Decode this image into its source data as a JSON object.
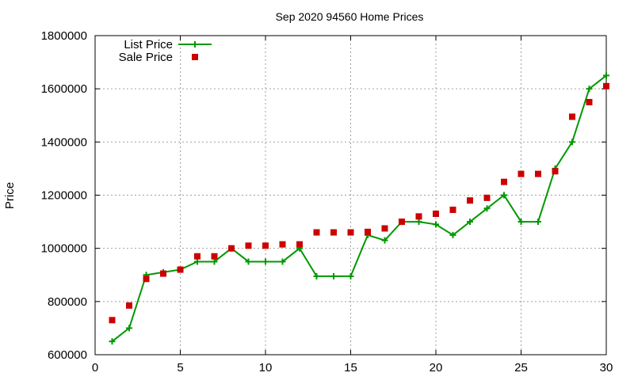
{
  "chart_data": {
    "type": "line",
    "title": "Sep 2020 94560 Home Prices",
    "xlabel": "",
    "ylabel": "Price",
    "xlim": [
      0,
      30
    ],
    "ylim": [
      600000,
      1800000
    ],
    "grid": true,
    "legend_position": "top-left",
    "x_ticks": [
      "0",
      "5",
      "10",
      "15",
      "20",
      "25",
      "30"
    ],
    "y_ticks": [
      "600000",
      "800000",
      "1000000",
      "1200000",
      "1400000",
      "1600000",
      "1800000"
    ],
    "series": [
      {
        "name": "List Price",
        "style": "line-with-plus-markers",
        "color": "#009900",
        "x": [
          1,
          2,
          3,
          4,
          5,
          6,
          7,
          8,
          9,
          10,
          11,
          12,
          13,
          14,
          15,
          16,
          17,
          18,
          19,
          20,
          21,
          22,
          23,
          24,
          25,
          26,
          27,
          28,
          29,
          30
        ],
        "y": [
          650000,
          700000,
          900000,
          910000,
          920000,
          950000,
          950000,
          1000000,
          950000,
          950000,
          950000,
          1000000,
          895000,
          895000,
          895000,
          1050000,
          1030000,
          1100000,
          1100000,
          1090000,
          1050000,
          1100000,
          1150000,
          1200000,
          1100000,
          1100000,
          1300000,
          1400000,
          1600000,
          1650000
        ]
      },
      {
        "name": "Sale Price",
        "style": "square-markers",
        "color": "#cc0000",
        "x": [
          1,
          2,
          3,
          4,
          5,
          6,
          7,
          8,
          9,
          10,
          11,
          12,
          13,
          14,
          15,
          16,
          17,
          18,
          19,
          20,
          21,
          22,
          23,
          24,
          25,
          26,
          27,
          28,
          29,
          30
        ],
        "y": [
          730000,
          785000,
          885000,
          905000,
          920000,
          970000,
          970000,
          1000000,
          1010000,
          1010000,
          1015000,
          1015000,
          1060000,
          1060000,
          1060000,
          1062000,
          1075000,
          1100000,
          1120000,
          1130000,
          1145000,
          1180000,
          1190000,
          1250000,
          1280000,
          1280000,
          1290000,
          1495000,
          1550000,
          1610000
        ]
      }
    ]
  }
}
